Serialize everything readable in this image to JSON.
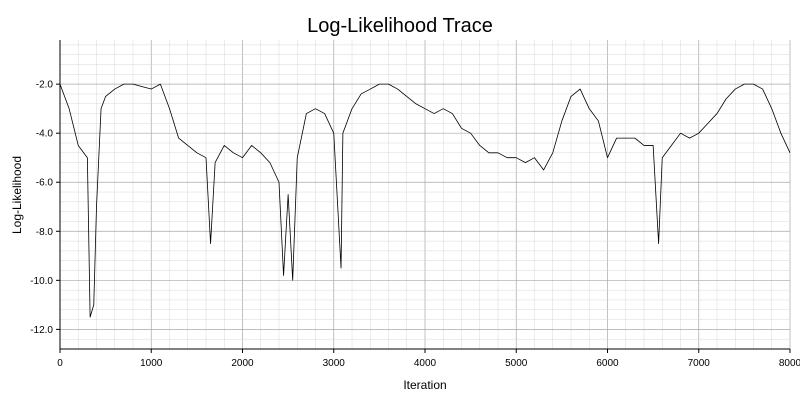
{
  "chart_data": {
    "type": "line",
    "title": "Log-Likelihood Trace",
    "xlabel": "Iteration",
    "ylabel": "Log-Likelihood",
    "xlim": [
      0,
      8000
    ],
    "ylim": [
      -12.8,
      -0.2
    ],
    "x_ticks": [
      0,
      1000,
      2000,
      3000,
      4000,
      5000,
      6000,
      7000,
      8000
    ],
    "y_ticks": [
      -12.0,
      -10.0,
      -8.0,
      -6.0,
      -4.0,
      -2.0
    ],
    "x_tick_labels": [
      "0",
      "1000",
      "2000",
      "3000",
      "4000",
      "5000",
      "6000",
      "7000",
      "8000"
    ],
    "y_tick_labels": [
      "-12.0",
      "-10.0",
      "-8.0",
      "-6.0",
      "-4.0",
      "-2.0"
    ],
    "grid": "on",
    "line_color": "#000000",
    "series": [
      {
        "x": [
          0,
          100,
          200,
          300,
          330,
          370,
          400,
          450,
          500,
          600,
          700,
          800,
          900,
          1000,
          1100,
          1150,
          1200,
          1300,
          1400,
          1500,
          1600,
          1650,
          1700,
          1800,
          1900,
          2000,
          2100,
          2200,
          2300,
          2400,
          2450,
          2500,
          2550,
          2600,
          2700,
          2800,
          2900,
          3000,
          3080,
          3100,
          3200,
          3300,
          3400,
          3500,
          3600,
          3700,
          3800,
          3900,
          4000,
          4100,
          4200,
          4300,
          4400,
          4500,
          4600,
          4700,
          4800,
          4900,
          5000,
          5100,
          5200,
          5300,
          5400,
          5500,
          5600,
          5700,
          5800,
          5900,
          6000,
          6100,
          6200,
          6300,
          6400,
          6500,
          6560,
          6600,
          6700,
          6800,
          6900,
          7000,
          7100,
          7200,
          7300,
          7400,
          7500,
          7600,
          7700,
          7800,
          7900,
          8000
        ],
        "y": [
          -2.0,
          -3.0,
          -4.5,
          -5.0,
          -11.5,
          -11.0,
          -7.0,
          -3.0,
          -2.5,
          -2.2,
          -2.0,
          -2.0,
          -2.1,
          -2.2,
          -2.0,
          -2.5,
          -3.0,
          -4.2,
          -4.5,
          -4.8,
          -5.0,
          -8.5,
          -5.2,
          -4.5,
          -4.8,
          -5.0,
          -4.5,
          -4.8,
          -5.2,
          -6.0,
          -9.8,
          -6.5,
          -10.0,
          -5.0,
          -3.2,
          -3.0,
          -3.2,
          -4.0,
          -9.5,
          -4.0,
          -3.0,
          -2.4,
          -2.2,
          -2.0,
          -2.0,
          -2.2,
          -2.5,
          -2.8,
          -3.0,
          -3.2,
          -3.0,
          -3.2,
          -3.8,
          -4.0,
          -4.5,
          -4.8,
          -4.8,
          -5.0,
          -5.0,
          -5.2,
          -5.0,
          -5.5,
          -4.8,
          -3.5,
          -2.5,
          -2.2,
          -3.0,
          -3.5,
          -5.0,
          -4.2,
          -4.2,
          -4.2,
          -4.5,
          -4.5,
          -8.5,
          -5.0,
          -4.5,
          -4.0,
          -4.2,
          -4.0,
          -3.6,
          -3.2,
          -2.6,
          -2.2,
          -2.0,
          -2.0,
          -2.2,
          -3.0,
          -4.0,
          -4.8
        ]
      }
    ]
  }
}
